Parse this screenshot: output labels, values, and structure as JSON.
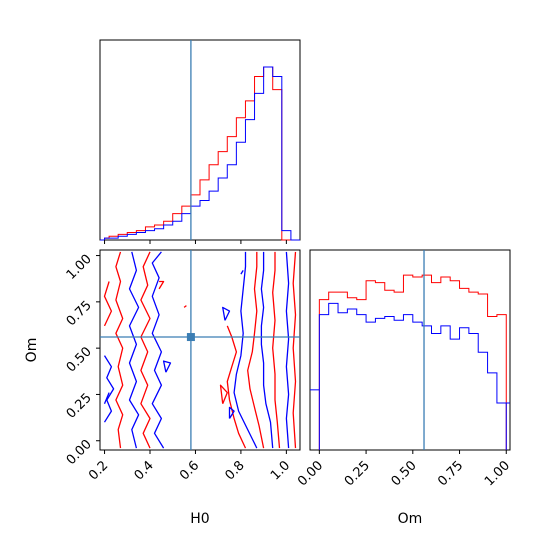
{
  "colors": {
    "series_red": "#ff0000",
    "series_blue": "#0000ff",
    "truth": "#3b7eb4",
    "axes": "#000000"
  },
  "chart_data": {
    "type": "corner",
    "parameters": [
      "H0",
      "Om"
    ],
    "truth": {
      "H0": 0.58,
      "Om": 0.56
    },
    "marginal_H0": {
      "type": "histogram",
      "xlim": [
        0.18,
        1.06
      ],
      "bins": [
        0.18,
        0.2,
        0.22,
        0.24,
        0.26,
        0.28,
        0.3,
        0.32,
        0.34,
        0.36,
        0.38,
        0.4,
        0.42,
        0.44,
        0.46,
        0.48,
        0.5,
        0.52,
        0.54,
        0.56,
        0.58,
        0.6,
        0.62,
        0.64,
        0.66,
        0.68,
        0.7,
        0.72,
        0.74,
        0.76,
        0.78,
        0.8,
        0.82,
        0.84,
        0.86,
        0.88,
        0.9,
        0.92,
        0.94,
        0.96,
        0.98,
        1.0,
        1.02,
        1.04,
        1.06
      ],
      "series": [
        {
          "color": "#ff0000",
          "values": [
            0.0,
            0.01,
            0.02,
            0.02,
            0.03,
            0.03,
            0.04,
            0.04,
            0.05,
            0.05,
            0.07,
            0.07,
            0.08,
            0.08,
            0.1,
            0.1,
            0.14,
            0.14,
            0.18,
            0.18,
            0.24,
            0.24,
            0.32,
            0.32,
            0.4,
            0.4,
            0.47,
            0.47,
            0.55,
            0.55,
            0.65,
            0.65,
            0.74,
            0.74,
            0.87,
            0.87,
            0.92,
            0.92,
            0.8,
            0.8,
            0.0,
            0.0,
            0.0,
            0.0
          ]
        },
        {
          "color": "#0000ff",
          "values": [
            0.0,
            0.01,
            0.01,
            0.01,
            0.02,
            0.02,
            0.03,
            0.03,
            0.04,
            0.04,
            0.05,
            0.05,
            0.06,
            0.06,
            0.08,
            0.08,
            0.1,
            0.1,
            0.14,
            0.14,
            0.18,
            0.18,
            0.21,
            0.21,
            0.26,
            0.26,
            0.33,
            0.33,
            0.4,
            0.4,
            0.52,
            0.52,
            0.64,
            0.64,
            0.78,
            0.78,
            0.92,
            0.92,
            0.87,
            0.87,
            0.05,
            0.05,
            0.0,
            0.0
          ]
        }
      ]
    },
    "marginal_Om": {
      "type": "histogram",
      "xlim": [
        -0.05,
        1.02
      ],
      "bins": [
        0.0,
        0.05,
        0.1,
        0.15,
        0.2,
        0.25,
        0.3,
        0.35,
        0.4,
        0.45,
        0.5,
        0.55,
        0.6,
        0.65,
        0.7,
        0.75,
        0.8,
        0.85,
        0.9,
        0.95,
        1.0
      ],
      "series": [
        {
          "color": "#ff0000",
          "values": [
            0.8,
            0.84,
            0.84,
            0.81,
            0.8,
            0.9,
            0.89,
            0.85,
            0.84,
            0.93,
            0.92,
            0.93,
            0.89,
            0.92,
            0.9,
            0.86,
            0.84,
            0.83,
            0.71,
            0.72
          ]
        },
        {
          "color": "#0000ff",
          "values": [
            0.72,
            0.78,
            0.73,
            0.75,
            0.72,
            0.68,
            0.7,
            0.71,
            0.69,
            0.72,
            0.68,
            0.66,
            0.62,
            0.66,
            0.59,
            0.65,
            0.62,
            0.52,
            0.41,
            0.25
          ]
        }
      ]
    },
    "joint": {
      "type": "contour",
      "xlabel": "H0",
      "ylabel": "Om",
      "xlim": [
        0.18,
        1.06
      ],
      "ylim": [
        -0.05,
        1.03
      ],
      "x_ticks": [
        "0.2",
        "0.4",
        "0.6",
        "0.8",
        "1.0"
      ],
      "y_ticks": [
        "0.00",
        "0.25",
        "0.50",
        "0.75",
        "1.00"
      ],
      "contours": [
        {
          "color": "#0000ff",
          "points": [
            [
              0.94,
              -0.04
            ],
            [
              0.93,
              0.1
            ],
            [
              0.91,
              0.2
            ],
            [
              0.9,
              0.3
            ],
            [
              0.9,
              0.42
            ],
            [
              0.89,
              0.52
            ],
            [
              0.89,
              0.62
            ],
            [
              0.9,
              0.72
            ],
            [
              0.89,
              0.82
            ],
            [
              0.9,
              0.92
            ],
            [
              0.9,
              1.02
            ]
          ]
        },
        {
          "color": "#ff0000",
          "points": [
            [
              0.97,
              -0.04
            ],
            [
              0.96,
              0.1
            ],
            [
              0.95,
              0.22
            ],
            [
              0.95,
              0.36
            ],
            [
              0.94,
              0.5
            ],
            [
              0.95,
              0.65
            ],
            [
              0.94,
              0.8
            ],
            [
              0.95,
              0.92
            ],
            [
              0.95,
              1.02
            ]
          ]
        },
        {
          "color": "#0000ff",
          "points": [
            [
              1.01,
              -0.04
            ],
            [
              1.0,
              0.12
            ],
            [
              1.01,
              0.25
            ],
            [
              1.0,
              0.4
            ],
            [
              1.01,
              0.55
            ],
            [
              1.0,
              0.7
            ],
            [
              1.01,
              0.85
            ],
            [
              1.0,
              1.02
            ]
          ]
        },
        {
          "color": "#ff0000",
          "points": [
            [
              1.04,
              -0.04
            ],
            [
              1.03,
              0.15
            ],
            [
              1.04,
              0.32
            ],
            [
              1.03,
              0.5
            ],
            [
              1.04,
              0.68
            ],
            [
              1.03,
              0.85
            ],
            [
              1.04,
              1.02
            ]
          ]
        },
        {
          "color": "#ff0000",
          "points": [
            [
              0.9,
              -0.04
            ],
            [
              0.88,
              0.08
            ],
            [
              0.86,
              0.18
            ],
            [
              0.84,
              0.28
            ],
            [
              0.83,
              0.38
            ],
            [
              0.85,
              0.48
            ],
            [
              0.86,
              0.58
            ],
            [
              0.87,
              0.7
            ],
            [
              0.86,
              0.82
            ],
            [
              0.87,
              0.94
            ],
            [
              0.87,
              1.02
            ]
          ]
        },
        {
          "color": "#0000ff",
          "points": [
            [
              0.87,
              -0.04
            ],
            [
              0.83,
              0.06
            ],
            [
              0.79,
              0.16
            ],
            [
              0.77,
              0.26
            ],
            [
              0.78,
              0.36
            ],
            [
              0.8,
              0.46
            ],
            [
              0.81,
              0.58
            ],
            [
              0.8,
              0.7
            ],
            [
              0.81,
              0.82
            ],
            [
              0.82,
              0.94
            ],
            [
              0.82,
              1.02
            ]
          ]
        },
        {
          "color": "#ff0000",
          "points": [
            [
              0.82,
              -0.04
            ],
            [
              0.79,
              0.04
            ],
            [
              0.77,
              0.12
            ],
            [
              0.75,
              0.22
            ],
            [
              0.74,
              0.32
            ],
            [
              0.76,
              0.4
            ],
            [
              0.78,
              0.48
            ],
            [
              0.76,
              0.56
            ],
            [
              0.74,
              0.62
            ]
          ]
        },
        {
          "color": "#ff0000",
          "points": [
            [
              0.27,
              -0.04
            ],
            [
              0.26,
              0.06
            ],
            [
              0.28,
              0.14
            ],
            [
              0.25,
              0.22
            ],
            [
              0.28,
              0.3
            ],
            [
              0.26,
              0.4
            ],
            [
              0.28,
              0.5
            ],
            [
              0.25,
              0.58
            ],
            [
              0.28,
              0.66
            ],
            [
              0.25,
              0.76
            ],
            [
              0.27,
              0.86
            ],
            [
              0.25,
              0.94
            ],
            [
              0.27,
              1.02
            ]
          ]
        },
        {
          "color": "#0000ff",
          "points": [
            [
              0.34,
              -0.04
            ],
            [
              0.32,
              0.06
            ],
            [
              0.35,
              0.14
            ],
            [
              0.31,
              0.22
            ],
            [
              0.34,
              0.32
            ],
            [
              0.31,
              0.42
            ],
            [
              0.34,
              0.52
            ],
            [
              0.31,
              0.62
            ],
            [
              0.35,
              0.72
            ],
            [
              0.31,
              0.82
            ],
            [
              0.34,
              0.92
            ],
            [
              0.32,
              1.02
            ]
          ]
        },
        {
          "color": "#ff0000",
          "points": [
            [
              0.4,
              -0.04
            ],
            [
              0.37,
              0.04
            ],
            [
              0.4,
              0.12
            ],
            [
              0.36,
              0.2
            ],
            [
              0.39,
              0.3
            ],
            [
              0.36,
              0.38
            ],
            [
              0.39,
              0.48
            ],
            [
              0.36,
              0.56
            ],
            [
              0.4,
              0.66
            ],
            [
              0.36,
              0.76
            ],
            [
              0.39,
              0.84
            ],
            [
              0.37,
              0.94
            ],
            [
              0.4,
              1.02
            ]
          ]
        },
        {
          "color": "#0000ff",
          "points": [
            [
              0.46,
              -0.04
            ],
            [
              0.42,
              0.04
            ],
            [
              0.45,
              0.12
            ],
            [
              0.41,
              0.2
            ],
            [
              0.45,
              0.3
            ],
            [
              0.42,
              0.38
            ],
            [
              0.45,
              0.48
            ],
            [
              0.41,
              0.58
            ],
            [
              0.44,
              0.68
            ],
            [
              0.41,
              0.78
            ],
            [
              0.44,
              0.88
            ],
            [
              0.41,
              0.96
            ],
            [
              0.45,
              1.02
            ]
          ]
        },
        {
          "color": "#0000ff",
          "points": [
            [
              0.2,
              0.1
            ],
            [
              0.23,
              0.16
            ],
            [
              0.21,
              0.22
            ],
            [
              0.24,
              0.28
            ],
            [
              0.21,
              0.34
            ],
            [
              0.23,
              0.4
            ],
            [
              0.2,
              0.46
            ]
          ]
        },
        {
          "color": "#ff0000",
          "points": [
            [
              0.2,
              0.62
            ],
            [
              0.23,
              0.7
            ],
            [
              0.2,
              0.78
            ],
            [
              0.22,
              0.86
            ]
          ]
        },
        {
          "color": "#0000ff",
          "points": [
            [
              0.2,
              0.2
            ],
            [
              0.22,
              0.26
            ]
          ]
        },
        {
          "color": "#ff0000",
          "points": [
            [
              0.72,
              0.2
            ],
            [
              0.74,
              0.26
            ],
            [
              0.71,
              0.3
            ],
            [
              0.72,
              0.2
            ]
          ]
        },
        {
          "color": "#0000ff",
          "points": [
            [
              0.75,
              0.12
            ],
            [
              0.77,
              0.16
            ],
            [
              0.75,
              0.18
            ],
            [
              0.75,
              0.12
            ]
          ]
        },
        {
          "color": "#0000ff",
          "points": [
            [
              0.73,
              0.65
            ],
            [
              0.75,
              0.7
            ],
            [
              0.72,
              0.72
            ],
            [
              0.73,
              0.65
            ]
          ]
        },
        {
          "color": "#0000ff",
          "points": [
            [
              0.47,
              0.37
            ],
            [
              0.49,
              0.42
            ],
            [
              0.46,
              0.43
            ],
            [
              0.47,
              0.37
            ]
          ]
        },
        {
          "color": "#ff0000",
          "points": [
            [
              0.44,
              0.82
            ],
            [
              0.46,
              0.86
            ],
            [
              0.44,
              0.86
            ]
          ]
        },
        {
          "color": "#ff0000",
          "points": [
            [
              0.55,
              0.72
            ],
            [
              0.56,
              0.73
            ]
          ]
        },
        {
          "color": "#0000ff",
          "points": [
            [
              0.8,
              0.9
            ],
            [
              0.81,
              0.92
            ]
          ]
        }
      ]
    },
    "Om_marginal_xlabel": "Om",
    "Om_marginal_ticks": [
      "0.00",
      "0.25",
      "0.50",
      "0.75",
      "1.00"
    ]
  }
}
